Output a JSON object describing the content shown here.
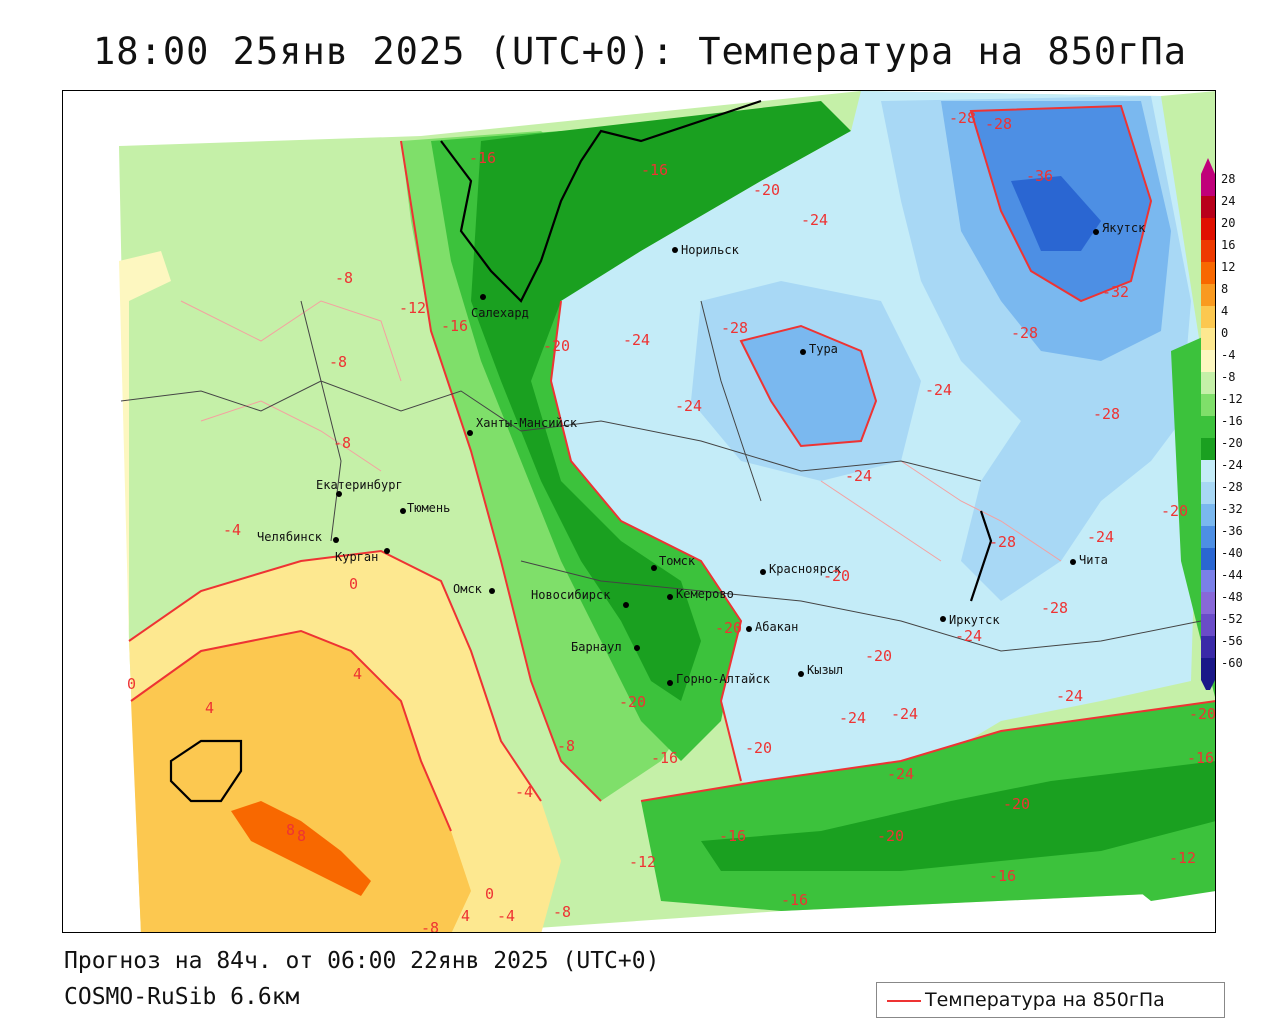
{
  "title": "18:00 25янв 2025 (UTC+0): Температура на 850гПа",
  "forecast_line": "Прогноз на 84ч. от 06:00 22янв 2025 (UTC+0)",
  "model_line": "COSMO-RuSib 6.6км",
  "legend": {
    "label": "Температура на 850гПа",
    "line_color": "#e33333"
  },
  "color_scale": {
    "labels": [
      "28",
      "24",
      "20",
      "16",
      "12",
      "8",
      "4",
      "0",
      "-4",
      "-8",
      "-12",
      "-16",
      "-20",
      "-24",
      "-28",
      "-32",
      "-36",
      "-40",
      "-44",
      "-48",
      "-52",
      "-56",
      "-60"
    ],
    "colors": [
      "#c0007a",
      "#b8001a",
      "#e01000",
      "#ee3a00",
      "#f86800",
      "#f99a20",
      "#fcc850",
      "#fde890",
      "#fdf7c0",
      "#c5f0a8",
      "#7fdf6a",
      "#3cc23c",
      "#1aa020",
      "#c4ecf8",
      "#a8d8f5",
      "#7ab8ef",
      "#4d8fe4",
      "#2a66d2",
      "#7a80e8",
      "#8868d8",
      "#6a4cc8",
      "#3a2aa8",
      "#1a1888"
    ]
  },
  "cities": [
    {
      "name": "Норильск"
    },
    {
      "name": "Салехард"
    },
    {
      "name": "Ханты-Мансийск"
    },
    {
      "name": "Тура"
    },
    {
      "name": "Якутск"
    },
    {
      "name": "Екатеринбург"
    },
    {
      "name": "Тюмень"
    },
    {
      "name": "Челябинск"
    },
    {
      "name": "Курган"
    },
    {
      "name": "Омск"
    },
    {
      "name": "Новосибирск"
    },
    {
      "name": "Томск"
    },
    {
      "name": "Кемерово"
    },
    {
      "name": "Красноярск"
    },
    {
      "name": "Абакан"
    },
    {
      "name": "Барнаул"
    },
    {
      "name": "Горно-Алтайск"
    },
    {
      "name": "Кызыл"
    },
    {
      "name": "Иркутск"
    },
    {
      "name": "Чита"
    }
  ],
  "isolines": [
    "-16",
    "-16",
    "-20",
    "-24",
    "-28",
    "-28",
    "-36",
    "-32",
    "-28",
    "-28",
    "-24",
    "-24",
    "-24",
    "-20",
    "-24",
    "-8",
    "-12",
    "-16",
    "-20",
    "-24",
    "-28",
    "-8",
    "-8",
    "-4",
    "0",
    "4",
    "4",
    "8",
    "8",
    "-8",
    "-4",
    "-12",
    "-16",
    "-16",
    "-20",
    "-24",
    "-24",
    "-24",
    "-20",
    "-16",
    "-20",
    "-16",
    "-12",
    "-20",
    "-16",
    "-20",
    "-28",
    "-24",
    "-28",
    "-24",
    "-20",
    "0",
    "-4",
    "-8",
    "-8",
    "4",
    "0",
    "-20",
    "-20"
  ]
}
